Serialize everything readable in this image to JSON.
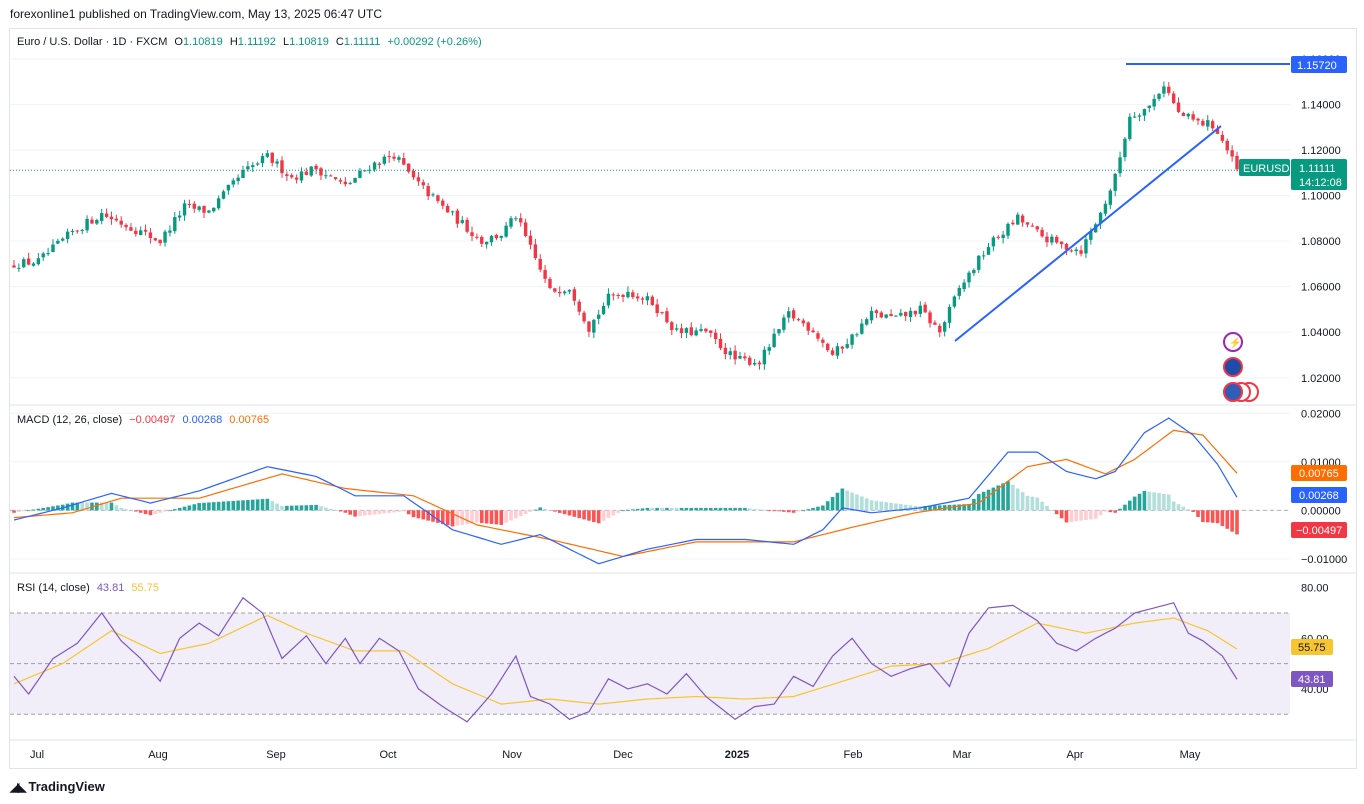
{
  "header": {
    "publisher": "forexonline1 published on TradingView.com, May 13, 2025 06:47 UTC"
  },
  "main_legend": {
    "symbol": "Euro / U.S. Dollar · 1D · FXCM",
    "open_label": "O",
    "open": "1.10819",
    "high_label": "H",
    "high": "1.11192",
    "low_label": "L",
    "low": "1.10819",
    "close_label": "C",
    "close": "1.11111",
    "change": "+0.00292 (+0.26%)"
  },
  "macd_legend": {
    "name": "MACD (12, 26, close)",
    "hist": "−0.00497",
    "macd": "0.00268",
    "signal": "0.00765"
  },
  "rsi_legend": {
    "name": "RSI (14, close)",
    "rsi": "43.81",
    "ma": "55.75"
  },
  "footer": {
    "brand": "TradingView"
  },
  "colors": {
    "up": "#089981",
    "down": "#f23645",
    "macd": "#2962ff",
    "signal": "#ff6d00",
    "rsi": "#7e57c2",
    "rsi_ma": "#f7c531",
    "trend": "#2962ff"
  },
  "chart_data": [
    {
      "type": "candlestick",
      "symbol": "EURUSD",
      "ylim": [
        1.012,
        1.163
      ],
      "y_ticks": [
        "1.02000",
        "1.04000",
        "1.06000",
        "1.08000",
        "1.10000",
        "1.12000",
        "1.14000",
        "1.16000"
      ],
      "y_tick_values": [
        1.02,
        1.04,
        1.06,
        1.08,
        1.1,
        1.12,
        1.14,
        1.16
      ],
      "x_labels": [
        "Jul",
        "Aug",
        "Sep",
        "Oct",
        "Nov",
        "Dec",
        "2025",
        "Feb",
        "Mar",
        "Apr",
        "May"
      ],
      "last_price_label": "EURUSD",
      "last_price": "1.11111",
      "countdown": "14:12:08",
      "horizontal_line_label": "1.15720",
      "close_waypoints": [
        [
          0,
          1.07
        ],
        [
          5,
          1.071
        ],
        [
          12,
          1.084
        ],
        [
          18,
          1.092
        ],
        [
          25,
          1.085
        ],
        [
          30,
          1.08
        ],
        [
          35,
          1.095
        ],
        [
          40,
          1.093
        ],
        [
          47,
          1.11
        ],
        [
          52,
          1.117
        ],
        [
          57,
          1.108
        ],
        [
          62,
          1.112
        ],
        [
          68,
          1.104
        ],
        [
          73,
          1.113
        ],
        [
          78,
          1.118
        ],
        [
          82,
          1.107
        ],
        [
          88,
          1.095
        ],
        [
          96,
          1.08
        ],
        [
          100,
          1.083
        ],
        [
          103,
          1.091
        ],
        [
          107,
          1.072
        ],
        [
          110,
          1.058
        ],
        [
          114,
          1.06
        ],
        [
          118,
          1.042
        ],
        [
          122,
          1.055
        ],
        [
          126,
          1.058
        ],
        [
          131,
          1.053
        ],
        [
          136,
          1.04
        ],
        [
          142,
          1.04
        ],
        [
          148,
          1.028
        ],
        [
          153,
          1.027
        ],
        [
          159,
          1.048
        ],
        [
          164,
          1.041
        ],
        [
          168,
          1.03
        ],
        [
          172,
          1.038
        ],
        [
          176,
          1.048
        ],
        [
          181,
          1.046
        ],
        [
          186,
          1.05
        ],
        [
          190,
          1.04
        ],
        [
          194,
          1.059
        ],
        [
          200,
          1.078
        ],
        [
          206,
          1.09
        ],
        [
          211,
          1.082
        ],
        [
          215,
          1.078
        ],
        [
          219,
          1.076
        ],
        [
          223,
          1.092
        ],
        [
          226,
          1.108
        ],
        [
          229,
          1.135
        ],
        [
          233,
          1.139
        ],
        [
          236,
          1.149
        ],
        [
          239,
          1.136
        ],
        [
          243,
          1.132
        ],
        [
          246,
          1.131
        ],
        [
          248,
          1.124
        ],
        [
          251,
          1.111
        ]
      ]
    },
    {
      "type": "line",
      "name": "MACD (12, 26, close)",
      "ylim": [
        -0.0125,
        0.0215
      ],
      "y_ticks": [
        "0.02000",
        "0.01000",
        "0.00000",
        "−0.01000"
      ],
      "y_tick_values": [
        0.02,
        0.01,
        0.0,
        -0.01
      ],
      "histogram_label": "−0.00497",
      "macd_label": "0.00268",
      "signal_label": "0.00765",
      "macd_waypoints": [
        [
          0,
          -0.002
        ],
        [
          10,
          0.0005
        ],
        [
          20,
          0.0035
        ],
        [
          28,
          0.0015
        ],
        [
          38,
          0.004
        ],
        [
          52,
          0.009
        ],
        [
          62,
          0.007
        ],
        [
          70,
          0.003
        ],
        [
          80,
          0.003
        ],
        [
          90,
          -0.004
        ],
        [
          100,
          -0.007
        ],
        [
          108,
          -0.005
        ],
        [
          115,
          -0.0085
        ],
        [
          120,
          -0.011
        ],
        [
          130,
          -0.008
        ],
        [
          140,
          -0.006
        ],
        [
          150,
          -0.006
        ],
        [
          160,
          -0.007
        ],
        [
          166,
          -0.004
        ],
        [
          170,
          0.0005
        ],
        [
          176,
          -0.0005
        ],
        [
          186,
          0.0005
        ],
        [
          196,
          0.0025
        ],
        [
          204,
          0.012
        ],
        [
          210,
          0.012
        ],
        [
          216,
          0.008
        ],
        [
          222,
          0.0065
        ],
        [
          226,
          0.008
        ],
        [
          232,
          0.016
        ],
        [
          237,
          0.019
        ],
        [
          242,
          0.0155
        ],
        [
          247,
          0.0095
        ],
        [
          251,
          0.00268
        ]
      ],
      "signal_waypoints": [
        [
          0,
          -0.0015
        ],
        [
          12,
          -0.0005
        ],
        [
          22,
          0.0025
        ],
        [
          38,
          0.0025
        ],
        [
          55,
          0.0075
        ],
        [
          68,
          0.0045
        ],
        [
          82,
          0.003
        ],
        [
          95,
          -0.003
        ],
        [
          110,
          -0.006
        ],
        [
          125,
          -0.0095
        ],
        [
          140,
          -0.0065
        ],
        [
          160,
          -0.0065
        ],
        [
          172,
          -0.0035
        ],
        [
          185,
          -0.0005
        ],
        [
          198,
          0.0015
        ],
        [
          208,
          0.009
        ],
        [
          216,
          0.0105
        ],
        [
          224,
          0.0075
        ],
        [
          230,
          0.0105
        ],
        [
          238,
          0.0165
        ],
        [
          244,
          0.0155
        ],
        [
          251,
          0.00765
        ]
      ]
    },
    {
      "type": "line",
      "name": "RSI (14, close)",
      "ylim": [
        21,
        85
      ],
      "y_ticks": [
        "80.00",
        "60.00",
        "40.00"
      ],
      "y_tick_values": [
        80,
        60,
        40
      ],
      "band": [
        30,
        70
      ],
      "mid": 50,
      "rsi_label": "43.81",
      "ma_label": "55.75",
      "rsi_waypoints": [
        [
          0,
          45
        ],
        [
          3,
          38
        ],
        [
          8,
          52
        ],
        [
          13,
          58
        ],
        [
          18,
          70
        ],
        [
          22,
          59
        ],
        [
          26,
          52
        ],
        [
          30,
          43
        ],
        [
          34,
          60
        ],
        [
          38,
          66
        ],
        [
          42,
          61
        ],
        [
          47,
          76
        ],
        [
          51,
          70
        ],
        [
          55,
          52
        ],
        [
          60,
          61
        ],
        [
          64,
          50
        ],
        [
          68,
          60
        ],
        [
          71,
          50
        ],
        [
          75,
          60
        ],
        [
          79,
          55
        ],
        [
          83,
          40
        ],
        [
          88,
          33
        ],
        [
          93,
          27
        ],
        [
          98,
          38
        ],
        [
          103,
          53
        ],
        [
          106,
          37
        ],
        [
          110,
          34
        ],
        [
          114,
          28
        ],
        [
          118,
          31
        ],
        [
          122,
          44
        ],
        [
          126,
          40
        ],
        [
          130,
          42
        ],
        [
          134,
          38
        ],
        [
          138,
          46
        ],
        [
          142,
          37
        ],
        [
          148,
          28
        ],
        [
          152,
          33
        ],
        [
          156,
          34
        ],
        [
          160,
          45
        ],
        [
          164,
          41
        ],
        [
          168,
          53
        ],
        [
          172,
          60
        ],
        [
          176,
          50
        ],
        [
          180,
          45
        ],
        [
          184,
          48
        ],
        [
          188,
          50
        ],
        [
          192,
          41
        ],
        [
          196,
          62
        ],
        [
          200,
          72
        ],
        [
          205,
          73
        ],
        [
          210,
          67
        ],
        [
          214,
          58
        ],
        [
          218,
          55
        ],
        [
          222,
          60
        ],
        [
          226,
          64
        ],
        [
          230,
          70
        ],
        [
          234,
          72
        ],
        [
          238,
          74
        ],
        [
          241,
          62
        ],
        [
          244,
          59
        ],
        [
          248,
          53
        ],
        [
          251,
          43.81
        ]
      ],
      "ma_waypoints": [
        [
          0,
          42
        ],
        [
          10,
          50
        ],
        [
          20,
          63
        ],
        [
          30,
          54
        ],
        [
          40,
          58
        ],
        [
          52,
          69
        ],
        [
          60,
          62
        ],
        [
          70,
          55
        ],
        [
          80,
          55
        ],
        [
          90,
          42
        ],
        [
          100,
          34
        ],
        [
          110,
          36
        ],
        [
          120,
          34
        ],
        [
          130,
          36
        ],
        [
          140,
          37
        ],
        [
          150,
          36
        ],
        [
          160,
          37
        ],
        [
          170,
          43
        ],
        [
          180,
          49
        ],
        [
          190,
          50
        ],
        [
          200,
          56
        ],
        [
          210,
          66
        ],
        [
          220,
          62
        ],
        [
          230,
          66
        ],
        [
          238,
          68
        ],
        [
          245,
          63
        ],
        [
          251,
          55.75
        ]
      ]
    }
  ]
}
